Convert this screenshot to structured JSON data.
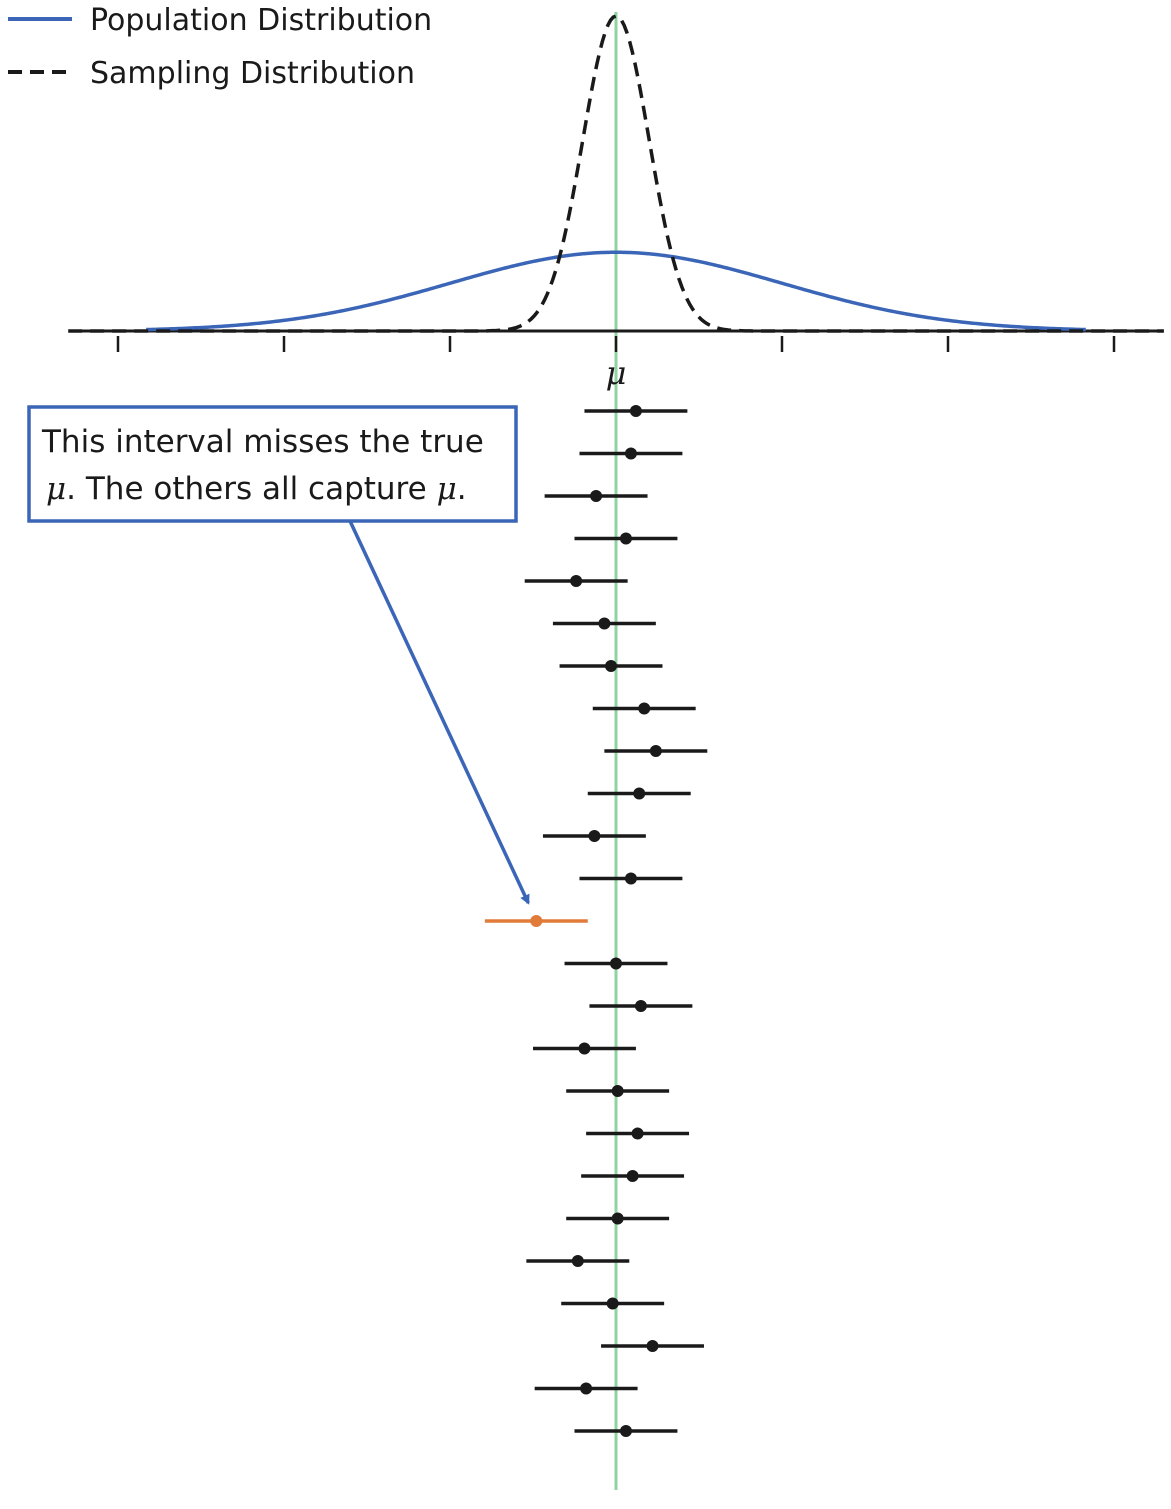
{
  "colors": {
    "population": "#3b66b7",
    "sampling": "#1a1a1a",
    "true_mean_line": "#8fd3a0",
    "interval": "#1a1a1a",
    "missed_interval": "#e07b39",
    "callout_border": "#3b66b7",
    "arrow": "#3b66b7"
  },
  "chart_data": {
    "type": "line",
    "legend_position": "top-left",
    "grid": false,
    "xlim": [
      -3,
      3.3
    ],
    "x_ticks": [
      -3,
      -2,
      -1,
      0,
      1,
      2,
      3
    ],
    "x_tick_labels": [
      "",
      "",
      "",
      "μ",
      "",
      "",
      ""
    ],
    "series": [
      {
        "name": "Population Distribution",
        "style": "solid",
        "color": "#3b66b7",
        "sd": 1.0,
        "peak": 0.25,
        "x_range": [
          -2.83,
          2.83
        ]
      },
      {
        "name": "Sampling Distribution",
        "style": "dashed",
        "color": "#1a1a1a",
        "sd": 0.2,
        "peak": 1.0,
        "x_range": [
          -3.3,
          3.3
        ]
      }
    ],
    "true_mean": 0,
    "intervals": {
      "half_width": 0.31,
      "centers": [
        0.12,
        0.09,
        -0.12,
        0.06,
        -0.24,
        -0.07,
        -0.03,
        0.17,
        0.24,
        0.14,
        -0.13,
        0.09,
        -0.48,
        0.0,
        0.15,
        -0.19,
        0.01,
        0.13,
        0.1,
        0.01,
        -0.23,
        -0.02,
        0.22,
        -0.18,
        0.06
      ],
      "missed_index": 12
    },
    "annotation": {
      "line1": "This interval misses the true",
      "line2_mu": "μ",
      "line2_text": ". The others all capture ",
      "line2_mu_end": "μ",
      "line2_end": ".",
      "target_index": 12
    }
  }
}
